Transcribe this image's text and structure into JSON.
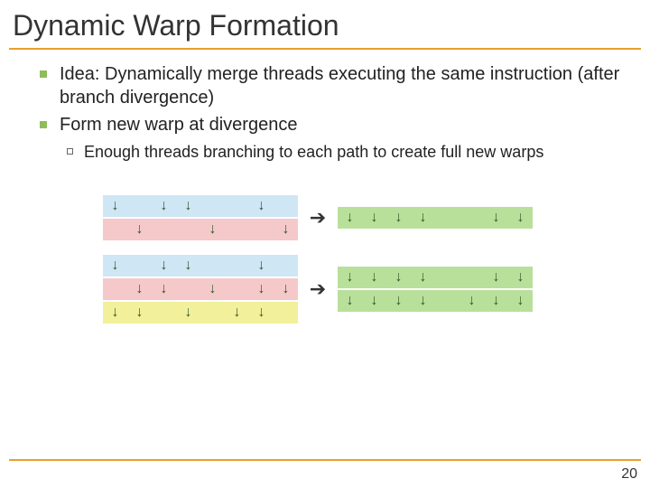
{
  "title": "Dynamic Warp Formation",
  "bullets": {
    "l1": [
      "Idea: Dynamically merge threads executing the same instruction (after branch divergence)",
      "Form new warp at divergence"
    ],
    "l2": [
      "Enough threads branching to each path to create full new warps"
    ]
  },
  "colors": {
    "rule": "#e8a02c",
    "bullet_square": "#8fbc5a",
    "row_blue": "#cfe6f5",
    "row_pink": "#f5c9c9",
    "row_yellow": "#f2f09a",
    "row_green": "#b8e09a",
    "arrow_fill": "#2f5a2a"
  },
  "pagenum": "20",
  "diagram": {
    "group1": {
      "left": [
        {
          "color": "row_blue",
          "arrows": [
            1,
            0,
            1,
            1,
            0,
            0,
            1,
            0
          ]
        },
        {
          "color": "row_pink",
          "arrows": [
            0,
            1,
            0,
            0,
            1,
            0,
            0,
            1
          ]
        }
      ],
      "right": [
        {
          "color": "row_green",
          "arrows": [
            1,
            1,
            1,
            1,
            0,
            0,
            1,
            1
          ]
        }
      ]
    },
    "group2": {
      "left": [
        {
          "color": "row_blue",
          "arrows": [
            1,
            0,
            1,
            1,
            0,
            0,
            1,
            0
          ]
        },
        {
          "color": "row_pink",
          "arrows": [
            0,
            1,
            1,
            0,
            1,
            0,
            1,
            1
          ]
        },
        {
          "color": "row_yellow",
          "arrows": [
            1,
            1,
            0,
            1,
            0,
            1,
            1,
            0
          ]
        }
      ],
      "right": [
        {
          "color": "row_green",
          "arrows": [
            1,
            1,
            1,
            1,
            0,
            0,
            1,
            1
          ]
        },
        {
          "color": "row_green",
          "arrows": [
            1,
            1,
            1,
            1,
            0,
            1,
            1,
            1
          ]
        }
      ]
    }
  }
}
